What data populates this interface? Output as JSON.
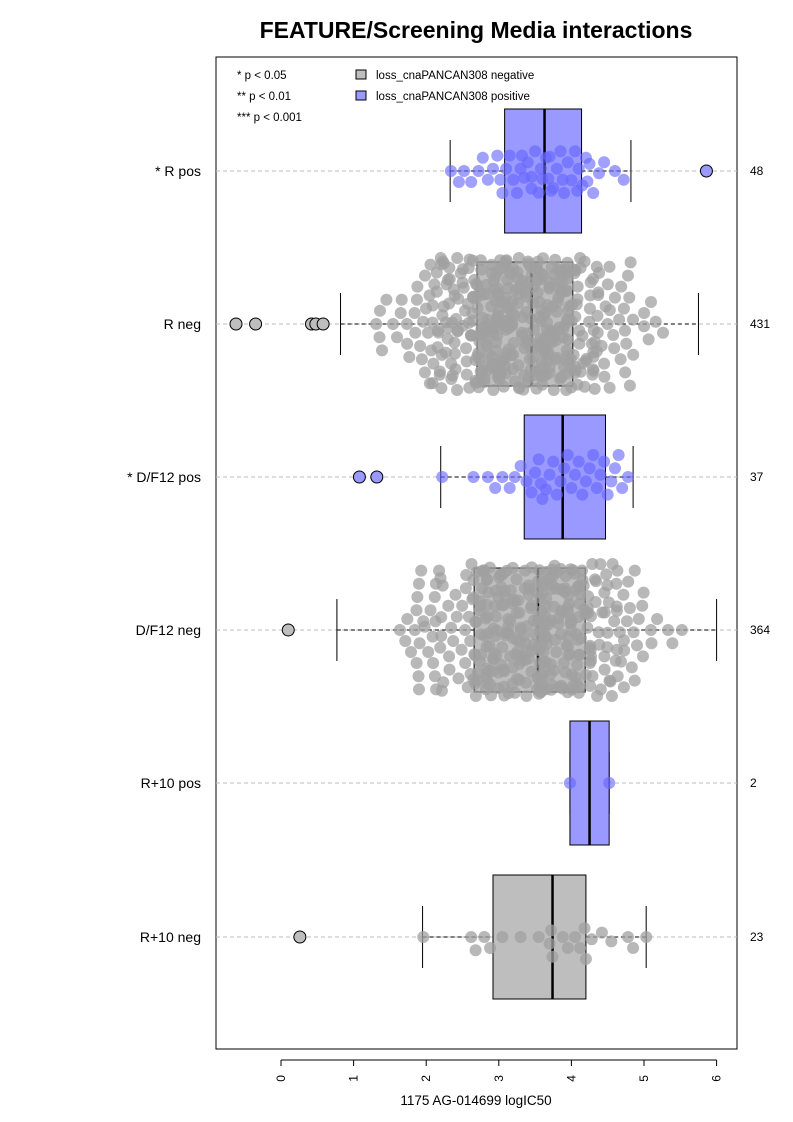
{
  "chart_data": {
    "type": "box",
    "title": "FEATURE/Screening Media interactions",
    "xlabel": "1175 AG-014699 logIC50",
    "xlim": [
      -0.9,
      6.3
    ],
    "x_ticks": [
      0,
      1,
      2,
      3,
      4,
      5,
      6
    ],
    "significance_legend": [
      "* p < 0.05",
      "** p < 0.01",
      "*** p < 0.001"
    ],
    "series_legend": [
      {
        "name": "loss_cnaPANCAN308 negative",
        "color": "#bebebe"
      },
      {
        "name": "loss_cnaPANCAN308 positive",
        "color": "#9999ff"
      }
    ],
    "groups": [
      {
        "label": "* R pos",
        "n": "48",
        "status": "positive",
        "q1": 3.08,
        "median": 3.63,
        "q3": 4.14,
        "whisker_low": 2.33,
        "whisker_high": 4.82,
        "outliers": [
          5.86
        ],
        "points": [
          2.34,
          2.45,
          2.52,
          2.62,
          2.72,
          2.78,
          2.85,
          2.92,
          2.98,
          3.05,
          3.1,
          3.15,
          3.2,
          3.25,
          3.3,
          3.35,
          3.4,
          3.45,
          3.5,
          3.55,
          3.6,
          3.65,
          3.7,
          3.75,
          3.8,
          3.85,
          3.9,
          3.95,
          4.0,
          4.05,
          4.1,
          4.15,
          4.2,
          4.25,
          4.3,
          4.38,
          4.45,
          4.6,
          4.72,
          3.02,
          3.32,
          3.58,
          3.72,
          3.88,
          4.08,
          4.22,
          3.45,
          3.68
        ]
      },
      {
        "label": "R neg",
        "n": "431",
        "status": "negative",
        "q1": 2.7,
        "median": 3.45,
        "q3": 4.02,
        "whisker_low": 0.82,
        "whisker_high": 5.75,
        "outliers": [
          -0.62,
          -0.35,
          0.42,
          0.48,
          0.58
        ],
        "points": []
      },
      {
        "label": "* D/F12 pos",
        "n": "37",
        "status": "positive",
        "q1": 3.35,
        "median": 3.88,
        "q3": 4.47,
        "whisker_low": 2.2,
        "whisker_high": 4.85,
        "outliers": [
          1.08,
          1.32
        ],
        "points": [
          2.22,
          2.65,
          2.85,
          2.95,
          3.05,
          3.15,
          3.22,
          3.3,
          3.38,
          3.45,
          3.5,
          3.55,
          3.6,
          3.65,
          3.7,
          3.75,
          3.8,
          3.85,
          3.9,
          3.95,
          4.0,
          4.05,
          4.1,
          4.15,
          4.2,
          4.25,
          4.3,
          4.35,
          4.4,
          4.45,
          4.5,
          4.55,
          4.6,
          4.65,
          4.7,
          4.78,
          3.58
        ]
      },
      {
        "label": "D/F12 neg",
        "n": "364",
        "status": "negative",
        "q1": 2.66,
        "median": 3.54,
        "q3": 4.19,
        "whisker_low": 0.77,
        "whisker_high": 6.0,
        "outliers": [
          0.1
        ],
        "points": []
      },
      {
        "label": "R+10 pos",
        "n": "2",
        "status": "positive",
        "q1": 3.98,
        "median": 4.25,
        "q3": 4.52,
        "whisker_low": 3.98,
        "whisker_high": 4.52,
        "outliers": [],
        "points": [
          3.98,
          4.52
        ]
      },
      {
        "label": "R+10 neg",
        "n": "23",
        "status": "negative",
        "q1": 2.92,
        "median": 3.74,
        "q3": 4.2,
        "whisker_low": 1.95,
        "whisker_high": 5.03,
        "outliers": [
          0.26
        ],
        "points": [
          1.96,
          2.62,
          2.68,
          2.8,
          2.88,
          3.05,
          3.3,
          3.55,
          3.7,
          3.72,
          3.74,
          3.88,
          3.95,
          4.05,
          4.12,
          4.18,
          4.2,
          4.28,
          4.42,
          4.55,
          4.78,
          4.85,
          5.03
        ]
      }
    ]
  }
}
